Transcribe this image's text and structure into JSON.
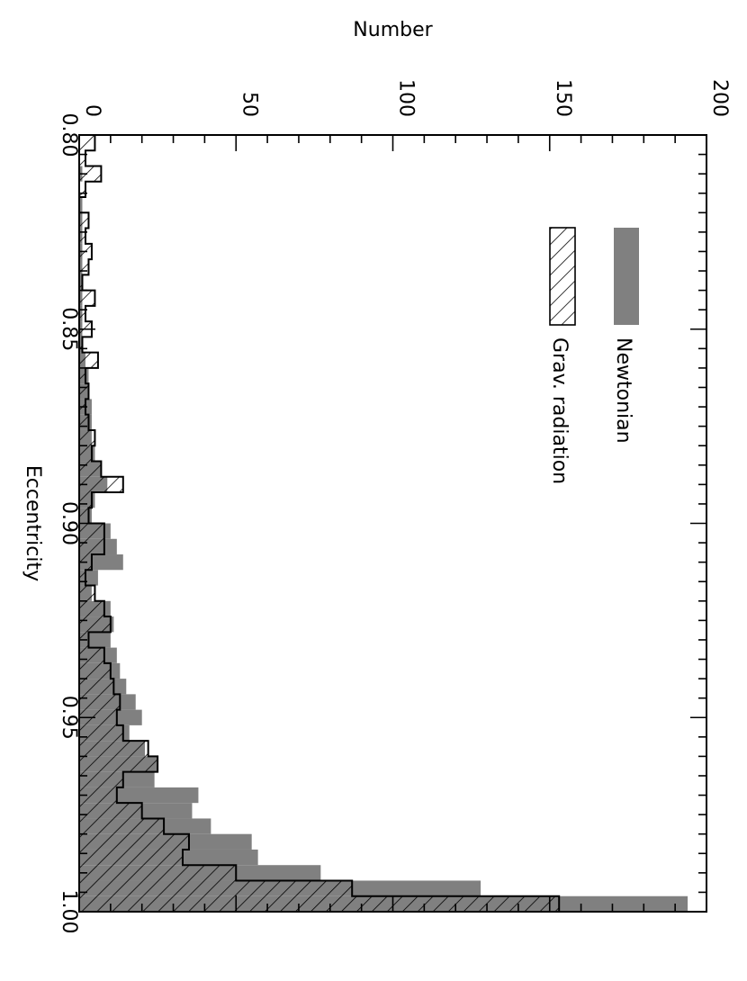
{
  "chart_data": {
    "type": "bar",
    "orientation": "rotated-90",
    "xlabel": "Eccentricity",
    "ylabel": "Number",
    "xlim": [
      0.8,
      1.0
    ],
    "ylim": [
      0,
      200
    ],
    "x_ticks": [
      0.8,
      0.85,
      0.9,
      0.95,
      1.0
    ],
    "x_tick_labels": [
      "0.80",
      "0.85",
      "0.90",
      "0.95",
      "1.00"
    ],
    "y_ticks": [
      0,
      50,
      100,
      150,
      200
    ],
    "y_tick_labels": [
      "0",
      "50",
      "100",
      "150",
      "200"
    ],
    "bin_width": 0.004,
    "bin_starts": [
      0.8,
      0.804,
      0.808,
      0.812,
      0.816,
      0.82,
      0.824,
      0.828,
      0.832,
      0.836,
      0.84,
      0.844,
      0.848,
      0.852,
      0.856,
      0.86,
      0.864,
      0.868,
      0.872,
      0.876,
      0.88,
      0.884,
      0.888,
      0.892,
      0.896,
      0.9,
      0.904,
      0.908,
      0.912,
      0.916,
      0.92,
      0.924,
      0.928,
      0.932,
      0.936,
      0.94,
      0.944,
      0.948,
      0.952,
      0.956,
      0.96,
      0.964,
      0.968,
      0.972,
      0.976,
      0.98,
      0.984,
      0.988,
      0.992,
      0.996
    ],
    "series": [
      {
        "name": "Newtonian",
        "style": "solid-gray",
        "color": "#808080",
        "values": [
          0,
          0,
          1,
          0,
          1,
          1,
          1,
          1,
          1,
          1,
          1,
          1,
          1,
          1,
          2,
          3,
          3,
          4,
          4,
          4,
          5,
          7,
          9,
          5,
          4,
          10,
          12,
          14,
          6,
          4,
          10,
          11,
          10,
          12,
          13,
          15,
          18,
          20,
          16,
          21,
          25,
          24,
          38,
          36,
          42,
          55,
          57,
          77,
          128,
          194
        ]
      },
      {
        "name": "Grav. radiation",
        "style": "hatched",
        "color": "#000000",
        "values": [
          5,
          2,
          7,
          2,
          0,
          3,
          2,
          4,
          3,
          1,
          5,
          2,
          4,
          1,
          6,
          2,
          3,
          2,
          3,
          5,
          4,
          7,
          14,
          4,
          3,
          8,
          8,
          4,
          2,
          5,
          8,
          10,
          3,
          8,
          10,
          11,
          13,
          12,
          14,
          22,
          25,
          14,
          12,
          20,
          27,
          35,
          33,
          50,
          87,
          153
        ]
      }
    ],
    "legend": {
      "placement": "top-right",
      "entries": [
        "Newtonian",
        "Grav. radiation"
      ]
    },
    "grid": false
  }
}
